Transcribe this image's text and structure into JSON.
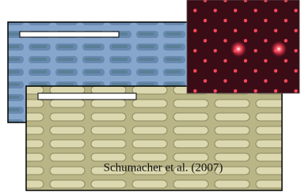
{
  "caption": "Schumacher et al. (2007)"
}
